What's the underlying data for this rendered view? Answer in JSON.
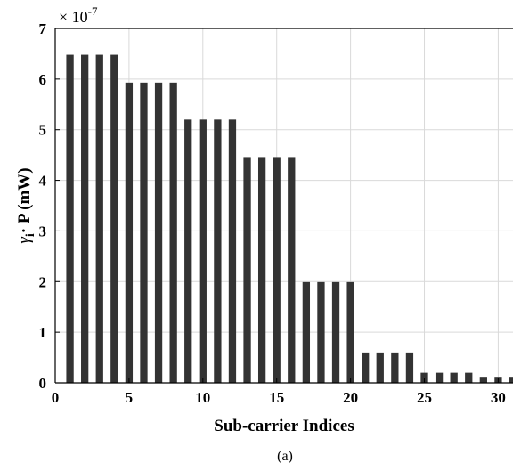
{
  "chart_data": {
    "type": "bar",
    "title": "",
    "xlabel": "Sub-carrier Indices",
    "ylabel_main": "γ",
    "ylabel_sub": "i",
    "ylabel_rest": "· P (mW)",
    "multiplier_base": "× 10",
    "multiplier_exp": "-7",
    "caption": "(a)",
    "grid": true,
    "xlim": [
      0,
      31
    ],
    "ylim": [
      0,
      7
    ],
    "xticks": [
      0,
      5,
      10,
      15,
      20,
      25,
      30
    ],
    "yticks": [
      0,
      1,
      2,
      3,
      4,
      5,
      6,
      7
    ],
    "bar_color": "#333333",
    "x": [
      1,
      2,
      3,
      4,
      5,
      6,
      7,
      8,
      9,
      10,
      11,
      12,
      13,
      14,
      15,
      16,
      17,
      18,
      19,
      20,
      21,
      22,
      23,
      24,
      25,
      26,
      27,
      28,
      29,
      30,
      31
    ],
    "values": [
      6.48,
      6.48,
      6.48,
      6.48,
      5.93,
      5.93,
      5.93,
      5.93,
      5.2,
      5.2,
      5.2,
      5.2,
      4.46,
      4.46,
      4.46,
      4.46,
      1.99,
      1.99,
      1.99,
      1.99,
      0.6,
      0.6,
      0.6,
      0.6,
      0.2,
      0.2,
      0.2,
      0.2,
      0.12,
      0.12,
      0.12
    ]
  }
}
